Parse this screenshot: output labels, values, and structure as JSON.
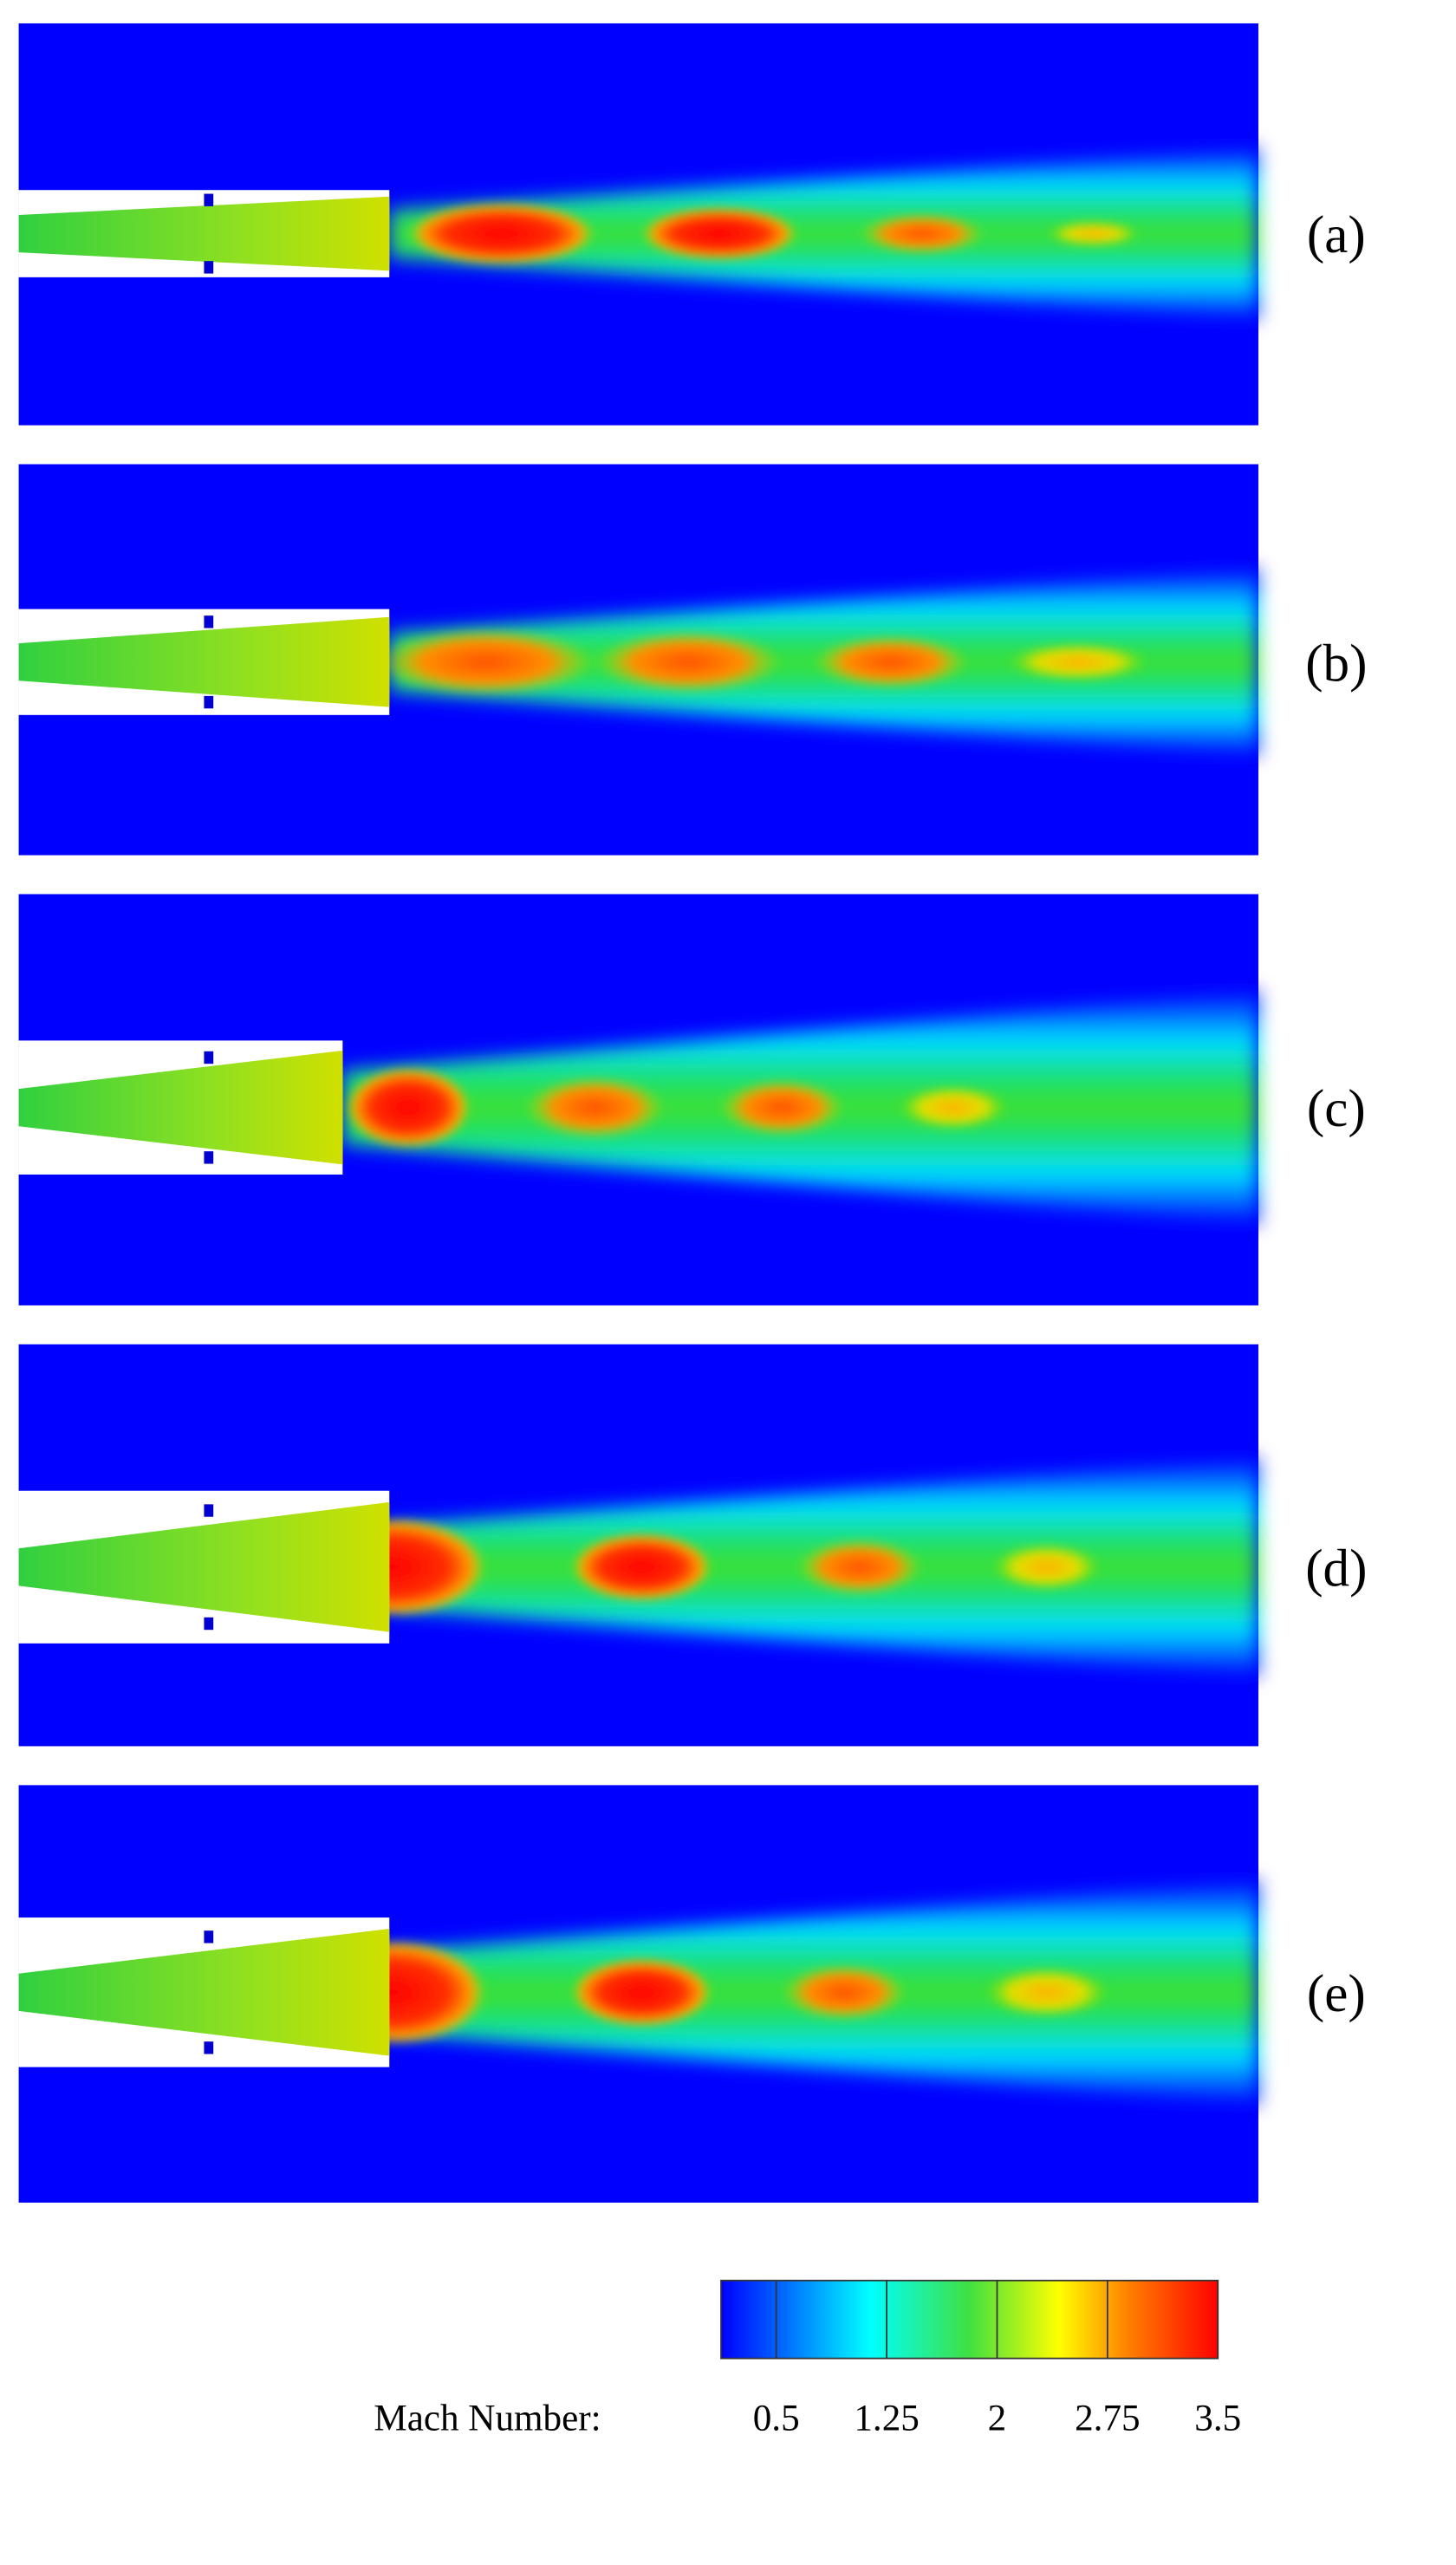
{
  "panels": [
    {
      "label": "(a)"
    },
    {
      "label": "(b)"
    },
    {
      "label": "(c)"
    },
    {
      "label": "(d)"
    },
    {
      "label": "(e)"
    }
  ],
  "colorbar": {
    "title": "Mach Number:",
    "lim": [
      0.125,
      3.5
    ],
    "ticks": [
      0.5,
      1.25,
      2,
      2.75,
      3.5
    ]
  }
}
